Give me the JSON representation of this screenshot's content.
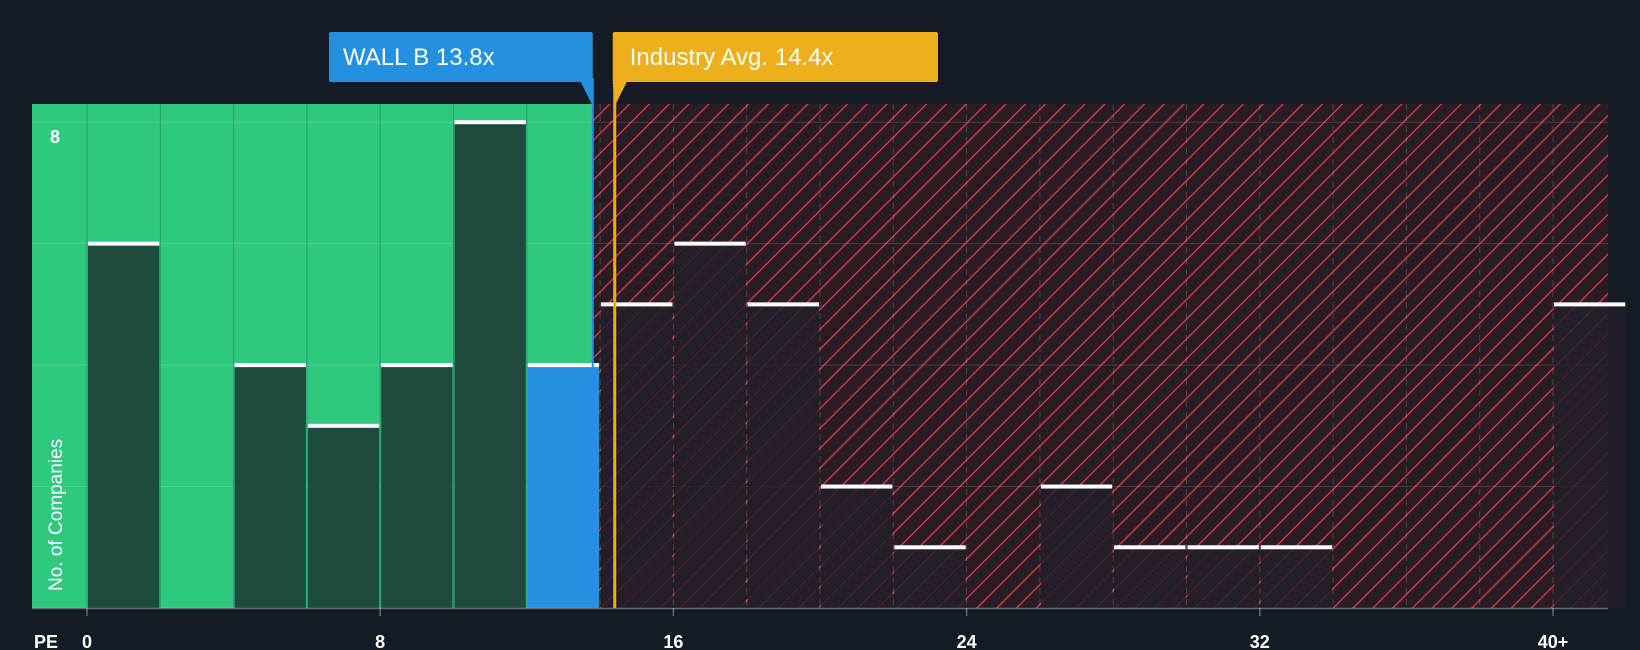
{
  "colors": {
    "background": "#151b24",
    "undervalued_zone": "#2ec87f",
    "overvalued_zone": "#2a1c25",
    "hatch": "#c9373f",
    "bar_dark": "#1e4a3f",
    "bar_overvalued": "#231f29",
    "highlight_bar": "#2391e0",
    "company_marker": "#2391e0",
    "industry_marker": "#edb01c",
    "cap_line": "#ffffff"
  },
  "chart_data": {
    "type": "bar",
    "title": "",
    "xlabel": "PE",
    "ylabel": "No. of Companies",
    "bin_width": 2,
    "x_range": [
      -1.5,
      41.5
    ],
    "ylim": [
      0,
      8.3
    ],
    "ytick_labels": [
      {
        "value": 8,
        "label": "8"
      }
    ],
    "gridlines_y": [
      2,
      4,
      6,
      8
    ],
    "x_ticks": [
      {
        "value": 0,
        "label": "0"
      },
      {
        "value": 8,
        "label": "8"
      },
      {
        "value": 16,
        "label": "16"
      },
      {
        "value": 24,
        "label": "24"
      },
      {
        "value": 32,
        "label": "32"
      },
      {
        "value": 40,
        "label": "40+"
      }
    ],
    "bins": [
      {
        "start": 0,
        "count": 6
      },
      {
        "start": 2,
        "count": 0
      },
      {
        "start": 4,
        "count": 4
      },
      {
        "start": 6,
        "count": 3
      },
      {
        "start": 8,
        "count": 4
      },
      {
        "start": 10,
        "count": 8
      },
      {
        "start": 12,
        "count": 4,
        "highlight": true
      },
      {
        "start": 14,
        "count": 5
      },
      {
        "start": 16,
        "count": 6
      },
      {
        "start": 18,
        "count": 5
      },
      {
        "start": 20,
        "count": 2
      },
      {
        "start": 22,
        "count": 1
      },
      {
        "start": 24,
        "count": 0
      },
      {
        "start": 26,
        "count": 2
      },
      {
        "start": 28,
        "count": 1
      },
      {
        "start": 30,
        "count": 1
      },
      {
        "start": 32,
        "count": 1
      },
      {
        "start": 34,
        "count": 0
      },
      {
        "start": 36,
        "count": 0
      },
      {
        "start": 38,
        "count": 0
      },
      {
        "start": 40,
        "count": 5
      }
    ],
    "company": {
      "name": "WALL B",
      "value": 13.8,
      "label": "WALL B 13.8x"
    },
    "industry": {
      "name": "Industry Avg.",
      "value": 14.4,
      "label": "Industry Avg. 14.4x"
    }
  }
}
